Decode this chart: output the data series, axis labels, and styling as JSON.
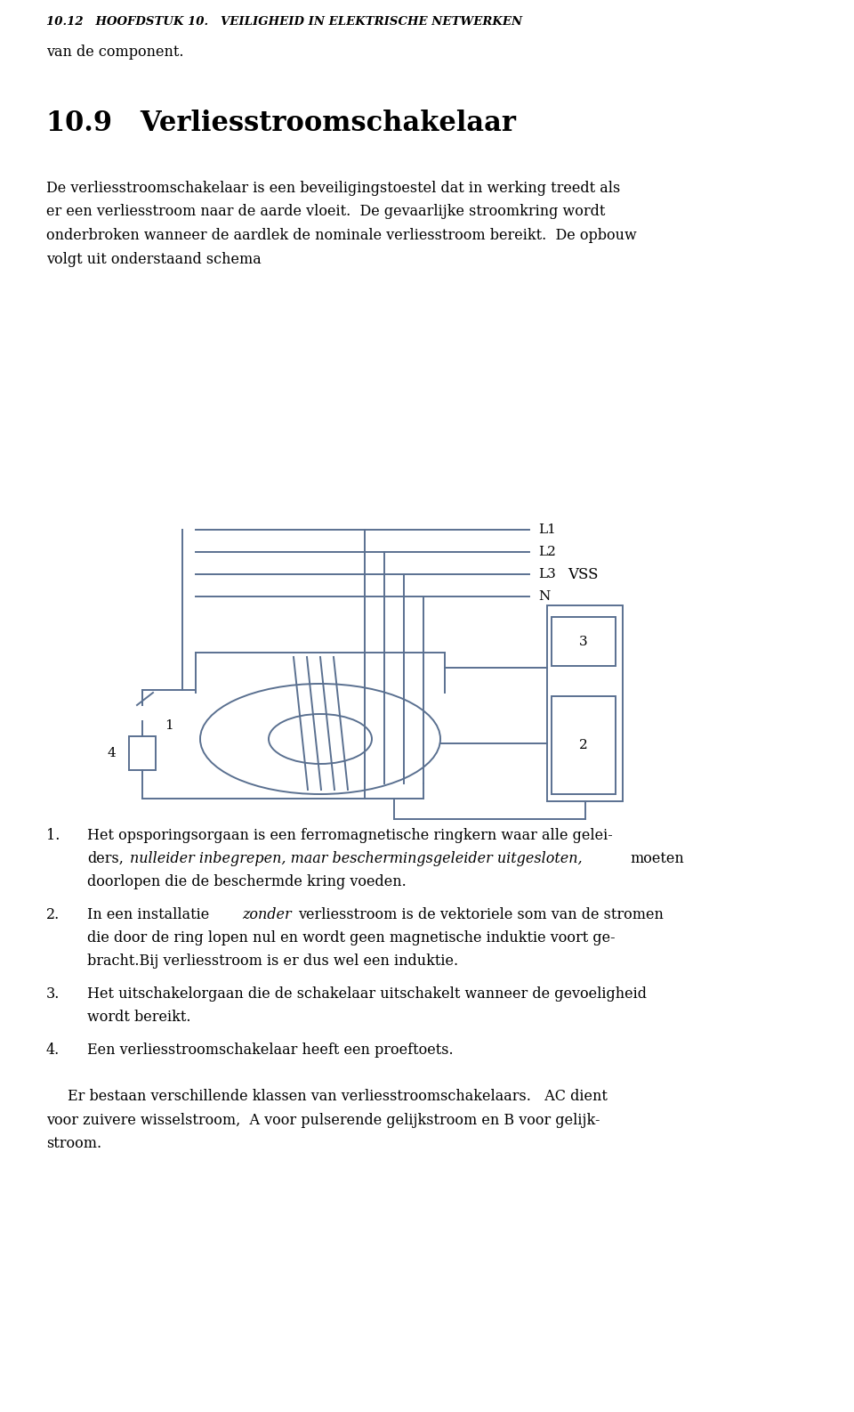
{
  "header": "10.12   HOOFDSTUK 10.   VEILIGHEID IN ELEKTRISCHE NETWERKEN",
  "line1": "van de component.",
  "section_title": "10.9   Verliesstroomschakelaar",
  "bg_color": "#ffffff",
  "text_color": "#000000",
  "diagram_line_color": "#5a7090",
  "lw": 1.4,
  "fig_w": 9.6,
  "fig_h": 15.86,
  "dpi": 100
}
